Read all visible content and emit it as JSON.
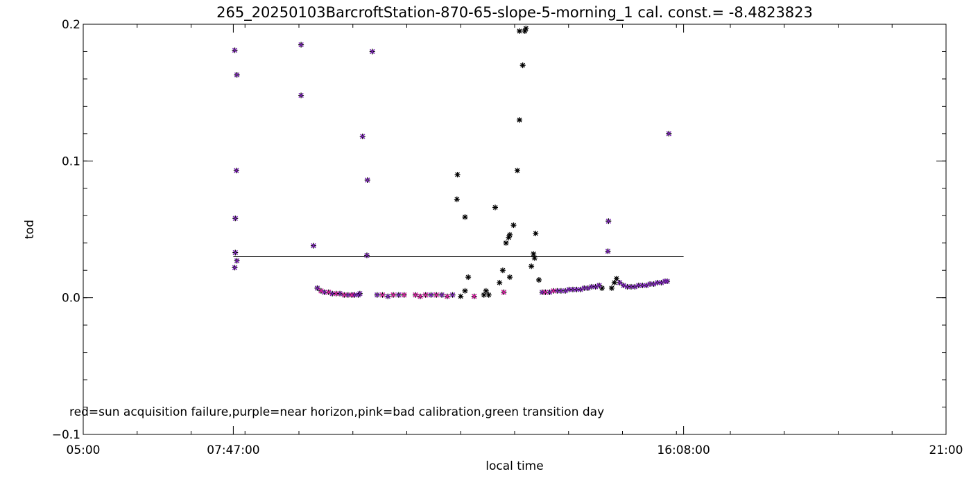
{
  "chart_data": {
    "type": "scatter",
    "title": "265_20250103BarcroftStation-870-65-slope-5-morning_1 cal. const.= -8.4823823",
    "xlabel": "local time",
    "ylabel": "tod",
    "xlim_hours": [
      5,
      21
    ],
    "ylim": [
      -0.1,
      0.2
    ],
    "x_tick_labels": [
      {
        "hour": 5.0,
        "label": "05:00"
      },
      {
        "hour": 7.7833,
        "label": "07:47:00"
      },
      {
        "hour": 16.1333,
        "label": "16:08:00"
      },
      {
        "hour": 21.0,
        "label": "21:00"
      }
    ],
    "y_tick_labels": [
      {
        "value": -0.1,
        "label": "−0.1"
      },
      {
        "value": 0.0,
        "label": "0.0"
      },
      {
        "value": 0.1,
        "label": "0.1"
      },
      {
        "value": 0.2,
        "label": "0.2"
      }
    ],
    "annotation": "red=sun acquisition failure,purple=near horizon,pink=bad calibration,green transition day",
    "colors": {
      "all": "#000000",
      "near_horizon": "#8020c0",
      "bad_calibration": "#e020a0"
    },
    "reference_line": {
      "x_start_hour": 7.7833,
      "x_end_hour": 16.1333,
      "y": 0.03
    },
    "series": [
      {
        "key": "all",
        "marker": "asterisk",
        "points": [
          [
            7.81,
            0.181
          ],
          [
            7.85,
            0.163
          ],
          [
            7.84,
            0.093
          ],
          [
            7.82,
            0.058
          ],
          [
            7.82,
            0.033
          ],
          [
            7.85,
            0.027
          ],
          [
            7.81,
            0.022
          ],
          [
            9.04,
            0.185
          ],
          [
            9.04,
            0.148
          ],
          [
            9.27,
            0.038
          ],
          [
            10.18,
            0.118
          ],
          [
            10.27,
            0.086
          ],
          [
            10.26,
            0.031
          ],
          [
            10.36,
            0.18
          ],
          [
            9.34,
            0.007
          ],
          [
            9.41,
            0.005
          ],
          [
            9.47,
            0.004
          ],
          [
            9.55,
            0.004
          ],
          [
            9.62,
            0.003
          ],
          [
            9.69,
            0.003
          ],
          [
            9.76,
            0.003
          ],
          [
            9.84,
            0.002
          ],
          [
            9.91,
            0.002
          ],
          [
            9.98,
            0.002
          ],
          [
            10.03,
            0.002
          ],
          [
            10.1,
            0.002
          ],
          [
            10.13,
            0.003
          ],
          [
            10.45,
            0.002
          ],
          [
            10.55,
            0.002
          ],
          [
            10.65,
            0.001
          ],
          [
            10.75,
            0.002
          ],
          [
            10.85,
            0.002
          ],
          [
            10.95,
            0.002
          ],
          [
            11.16,
            0.002
          ],
          [
            11.25,
            0.001
          ],
          [
            11.35,
            0.002
          ],
          [
            11.45,
            0.002
          ],
          [
            11.55,
            0.002
          ],
          [
            11.65,
            0.002
          ],
          [
            11.75,
            0.001
          ],
          [
            11.85,
            0.002
          ],
          [
            11.94,
            0.09
          ],
          [
            11.93,
            0.072
          ],
          [
            12.08,
            0.059
          ],
          [
            12.14,
            0.015
          ],
          [
            12.0,
            0.001
          ],
          [
            12.08,
            0.005
          ],
          [
            12.25,
            0.001
          ],
          [
            12.47,
            0.005
          ],
          [
            12.43,
            0.002
          ],
          [
            12.52,
            0.002
          ],
          [
            12.64,
            0.066
          ],
          [
            12.72,
            0.011
          ],
          [
            12.78,
            0.02
          ],
          [
            12.84,
            0.04
          ],
          [
            12.89,
            0.044
          ],
          [
            12.91,
            0.046
          ],
          [
            12.98,
            0.053
          ],
          [
            12.91,
            0.015
          ],
          [
            12.8,
            0.004
          ],
          [
            13.05,
            0.093
          ],
          [
            13.09,
            0.13
          ],
          [
            13.09,
            0.195
          ],
          [
            13.15,
            0.17
          ],
          [
            13.19,
            0.195
          ],
          [
            13.21,
            0.197
          ],
          [
            13.31,
            0.023
          ],
          [
            13.35,
            0.032
          ],
          [
            13.37,
            0.029
          ],
          [
            13.39,
            0.047
          ],
          [
            13.45,
            0.013
          ],
          [
            13.51,
            0.004
          ],
          [
            13.57,
            0.004
          ],
          [
            13.65,
            0.004
          ],
          [
            13.72,
            0.005
          ],
          [
            13.79,
            0.005
          ],
          [
            13.86,
            0.005
          ],
          [
            13.94,
            0.005
          ],
          [
            14.01,
            0.006
          ],
          [
            14.08,
            0.006
          ],
          [
            14.15,
            0.006
          ],
          [
            14.22,
            0.006
          ],
          [
            14.29,
            0.007
          ],
          [
            14.36,
            0.007
          ],
          [
            14.43,
            0.008
          ],
          [
            14.5,
            0.008
          ],
          [
            14.57,
            0.009
          ],
          [
            14.62,
            0.007
          ],
          [
            14.74,
            0.056
          ],
          [
            14.73,
            0.034
          ],
          [
            14.8,
            0.007
          ],
          [
            14.85,
            0.011
          ],
          [
            14.89,
            0.014
          ],
          [
            14.95,
            0.011
          ],
          [
            15.02,
            0.009
          ],
          [
            15.09,
            0.008
          ],
          [
            15.16,
            0.008
          ],
          [
            15.23,
            0.008
          ],
          [
            15.3,
            0.009
          ],
          [
            15.37,
            0.009
          ],
          [
            15.44,
            0.009
          ],
          [
            15.51,
            0.01
          ],
          [
            15.58,
            0.01
          ],
          [
            15.65,
            0.011
          ],
          [
            15.72,
            0.011
          ],
          [
            15.79,
            0.012
          ],
          [
            15.83,
            0.012
          ],
          [
            15.86,
            0.12
          ]
        ]
      },
      {
        "key": "near_horizon",
        "marker": "cross",
        "points": [
          [
            7.81,
            0.181
          ],
          [
            7.85,
            0.163
          ],
          [
            7.84,
            0.093
          ],
          [
            7.82,
            0.058
          ],
          [
            7.82,
            0.033
          ],
          [
            7.85,
            0.027
          ],
          [
            7.81,
            0.022
          ],
          [
            9.04,
            0.185
          ],
          [
            9.04,
            0.148
          ],
          [
            9.27,
            0.038
          ],
          [
            10.18,
            0.118
          ],
          [
            10.27,
            0.086
          ],
          [
            10.26,
            0.031
          ],
          [
            10.36,
            0.18
          ],
          [
            9.34,
            0.007
          ],
          [
            9.41,
            0.005
          ],
          [
            9.47,
            0.004
          ],
          [
            9.55,
            0.004
          ],
          [
            9.62,
            0.003
          ],
          [
            9.69,
            0.003
          ],
          [
            9.76,
            0.003
          ],
          [
            9.84,
            0.002
          ],
          [
            9.91,
            0.002
          ],
          [
            9.98,
            0.002
          ],
          [
            10.03,
            0.002
          ],
          [
            10.1,
            0.002
          ],
          [
            10.13,
            0.003
          ],
          [
            10.45,
            0.002
          ],
          [
            10.55,
            0.002
          ],
          [
            10.65,
            0.001
          ],
          [
            10.75,
            0.002
          ],
          [
            10.85,
            0.002
          ],
          [
            10.95,
            0.002
          ],
          [
            11.16,
            0.002
          ],
          [
            11.25,
            0.001
          ],
          [
            11.35,
            0.002
          ],
          [
            11.45,
            0.002
          ],
          [
            11.55,
            0.002
          ],
          [
            11.65,
            0.002
          ],
          [
            11.75,
            0.001
          ],
          [
            11.85,
            0.002
          ],
          [
            12.25,
            0.001
          ],
          [
            12.8,
            0.004
          ],
          [
            13.51,
            0.004
          ],
          [
            13.57,
            0.004
          ],
          [
            13.65,
            0.004
          ],
          [
            13.72,
            0.005
          ],
          [
            13.79,
            0.005
          ],
          [
            13.86,
            0.005
          ],
          [
            13.94,
            0.005
          ],
          [
            14.01,
            0.006
          ],
          [
            14.08,
            0.006
          ],
          [
            14.15,
            0.006
          ],
          [
            14.22,
            0.006
          ],
          [
            14.29,
            0.007
          ],
          [
            14.36,
            0.007
          ],
          [
            14.43,
            0.008
          ],
          [
            14.5,
            0.008
          ],
          [
            14.57,
            0.009
          ],
          [
            14.74,
            0.056
          ],
          [
            14.73,
            0.034
          ],
          [
            14.95,
            0.011
          ],
          [
            15.02,
            0.009
          ],
          [
            15.09,
            0.008
          ],
          [
            15.16,
            0.008
          ],
          [
            15.23,
            0.008
          ],
          [
            15.3,
            0.009
          ],
          [
            15.37,
            0.009
          ],
          [
            15.44,
            0.009
          ],
          [
            15.51,
            0.01
          ],
          [
            15.58,
            0.01
          ],
          [
            15.65,
            0.011
          ],
          [
            15.72,
            0.011
          ],
          [
            15.79,
            0.012
          ],
          [
            15.83,
            0.012
          ],
          [
            15.86,
            0.12
          ]
        ]
      },
      {
        "key": "bad_calibration",
        "marker": "cross",
        "points": [
          [
            9.41,
            0.005
          ],
          [
            9.55,
            0.004
          ],
          [
            9.69,
            0.003
          ],
          [
            9.84,
            0.002
          ],
          [
            9.98,
            0.002
          ],
          [
            10.55,
            0.002
          ],
          [
            10.75,
            0.002
          ],
          [
            10.95,
            0.002
          ],
          [
            11.16,
            0.002
          ],
          [
            11.25,
            0.001
          ],
          [
            11.35,
            0.002
          ],
          [
            11.55,
            0.002
          ],
          [
            11.75,
            0.001
          ],
          [
            12.25,
            0.001
          ],
          [
            12.8,
            0.004
          ],
          [
            13.57,
            0.004
          ],
          [
            13.72,
            0.005
          ]
        ]
      }
    ]
  }
}
